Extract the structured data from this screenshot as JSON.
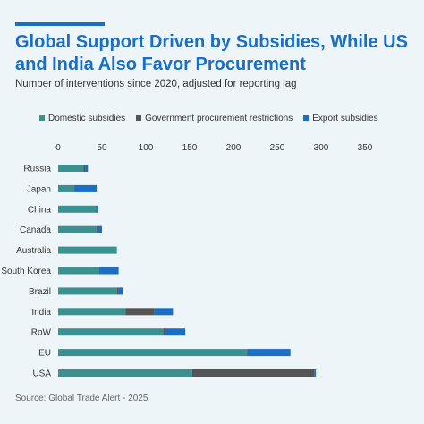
{
  "header": {
    "title": "Global Support Driven by Subsidies, While US and India Also Favor Procurement",
    "subtitle": "Number of interventions since 2020, adjusted for reporting lag"
  },
  "source": "Source: Global Trade Alert - 2025",
  "colors": {
    "accent": "#1a6fc4",
    "background": "#eef5f8"
  },
  "chart_data": {
    "type": "bar",
    "orientation": "horizontal",
    "stacked": true,
    "categories": [
      "Russia",
      "Japan",
      "China",
      "Canada",
      "Australia",
      "South Korea",
      "Brazil",
      "India",
      "RoW",
      "EU",
      "USA"
    ],
    "series": [
      {
        "name": "Domestic subsidies",
        "color": "#3a9190",
        "values": [
          29,
          18,
          43,
          44,
          67,
          47,
          67,
          77,
          120,
          215,
          153
        ]
      },
      {
        "name": "Government procurement restrictions",
        "color": "#555555",
        "values": [
          2,
          1,
          1,
          1,
          0,
          1,
          2,
          33,
          3,
          1,
          139
        ]
      },
      {
        "name": "Export subsidies",
        "color": "#1a6fc4",
        "values": [
          3,
          25,
          2,
          5,
          0,
          21,
          5,
          21,
          22,
          49,
          2
        ]
      }
    ],
    "xlim": [
      0,
      350
    ],
    "xticks": [
      0,
      50,
      100,
      150,
      200,
      250,
      300,
      350
    ],
    "legend_position": "top",
    "grid": false
  }
}
